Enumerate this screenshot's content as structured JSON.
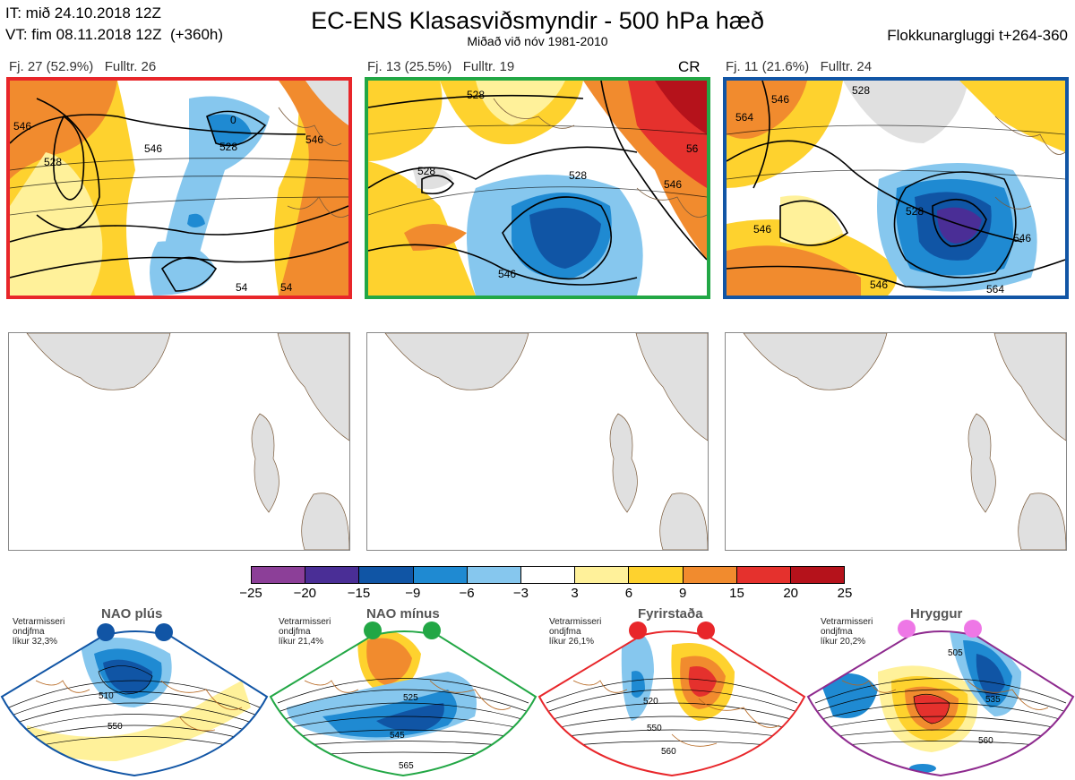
{
  "header": {
    "it_line": "IT: mið 24.10.2018 12Z",
    "vt_line": "VT: fim 08.11.2018 12Z  (+360h)",
    "title": "EC-ENS Klasasviðsmyndir - 500 hPa hæð",
    "subtitle": "Miðað við nóv 1981-2010",
    "window": "Flokkunargluggi t+264-360"
  },
  "clusters": [
    {
      "label": "Fj. 27 (52.9%)   Fulltr. 26",
      "border_color": "#e8262a",
      "contour_labels": [
        "546",
        "528",
        "0",
        "546",
        "546",
        "528",
        "54",
        "54"
      ]
    },
    {
      "label": "Fj. 13 (25.5%)   Fulltr. 19",
      "border_color": "#22a745",
      "marker": "CR",
      "contour_labels": [
        "528",
        "528",
        "528",
        "546",
        "546",
        "56"
      ]
    },
    {
      "label": "Fj. 11 (21.6%)   Fulltr. 24",
      "border_color": "#1155a5",
      "contour_labels": [
        "564",
        "546",
        "528",
        "546",
        "546",
        "528",
        "546",
        "564"
      ]
    }
  ],
  "colorbar": {
    "ticks": [
      "−25",
      "−20",
      "−15",
      "−9",
      "−6",
      "−3",
      "3",
      "6",
      "9",
      "15",
      "20",
      "25"
    ],
    "colors": [
      "#8c3f98",
      "#4a2e96",
      "#1055a5",
      "#1f8ad2",
      "#86c7ee",
      "#ffffff",
      "#fff19a",
      "#fed22e",
      "#f18b2e",
      "#e5312d",
      "#b5121b"
    ]
  },
  "regimes": [
    {
      "title": "NAO plús",
      "note": "Vetrarmisseri\nondjfma\nlíkur 32,3%",
      "color": "#1155a5",
      "contour_labels": [
        "510",
        "550"
      ]
    },
    {
      "title": "NAO mínus",
      "note": "Vetrarmisseri\nondjfma\nlíkur 21,4%",
      "color": "#22a745",
      "contour_labels": [
        "525",
        "545",
        "565"
      ]
    },
    {
      "title": "Fyrirstaða",
      "note": "Vetrarmisseri\nondjfma\nlíkur 26,1%",
      "color": "#e8262a",
      "contour_labels": [
        "520",
        "550",
        "560"
      ]
    },
    {
      "title": "Hryggur",
      "note": "Vetrarmisseri\nondjfma\nlíkur 20,2%",
      "color": "#ee77e6",
      "contour_labels": [
        "505",
        "535",
        "560"
      ]
    }
  ]
}
